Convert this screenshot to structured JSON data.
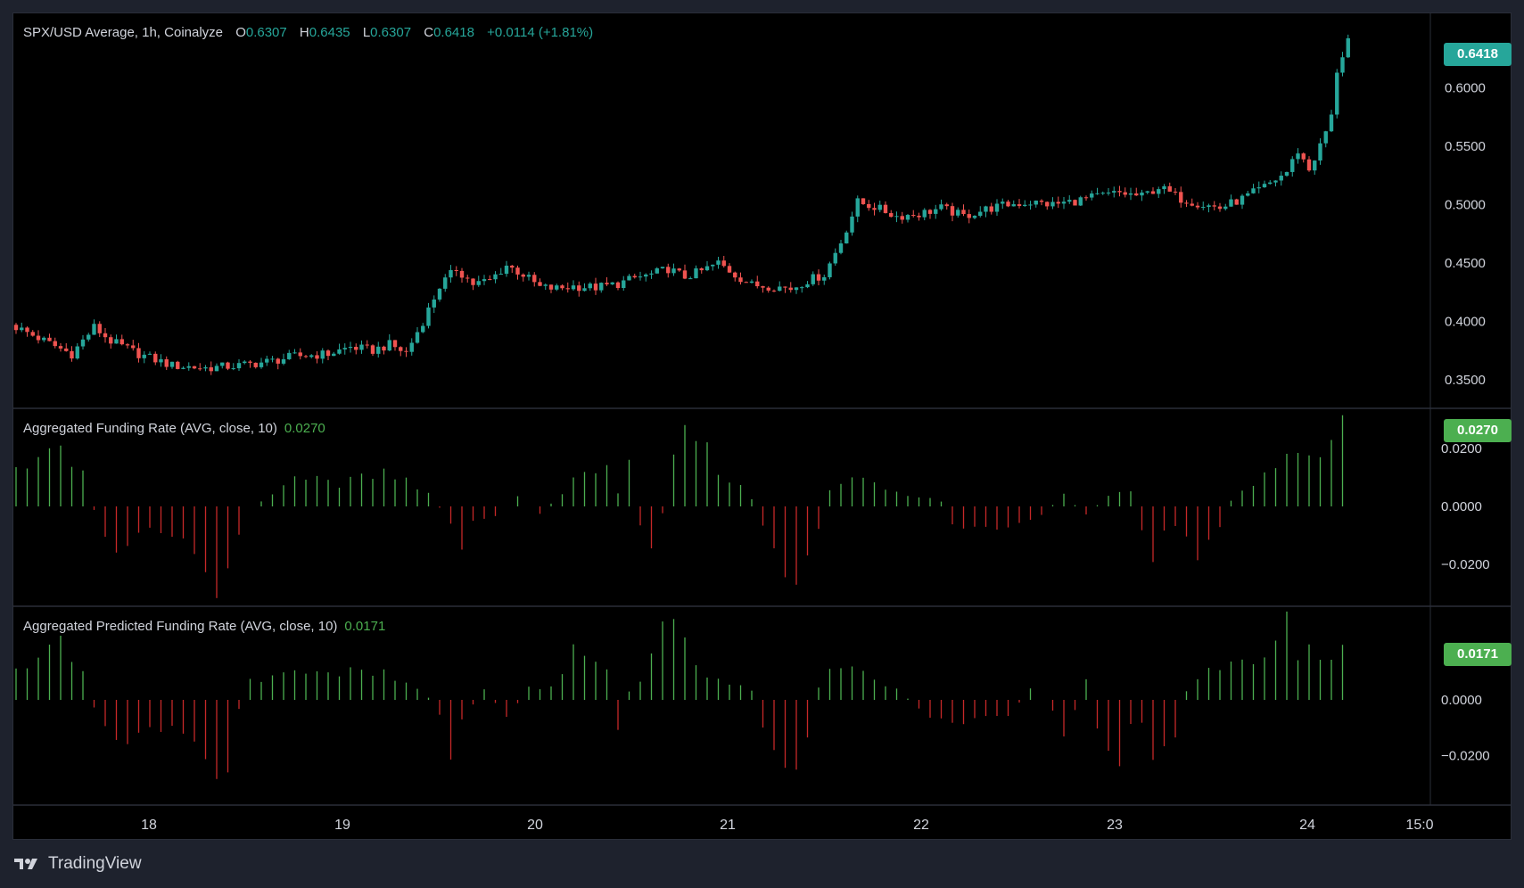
{
  "main": {
    "symbol": "SPX/USD Average, 1h, Coinalyze",
    "ohlc": [
      {
        "label": "O",
        "value": "0.6307"
      },
      {
        "label": "H",
        "value": "0.6435"
      },
      {
        "label": "L",
        "value": "0.6307"
      },
      {
        "label": "C",
        "value": "0.6418"
      }
    ],
    "change": "+0.0114 (+1.81%)",
    "last_price_tag": "0.6418"
  },
  "funding": {
    "title": "Aggregated Funding Rate (AVG, close, 10)",
    "value": "0.0270",
    "tag": "0.0270"
  },
  "predicted": {
    "title": "Aggregated Predicted Funding Rate (AVG, close, 10)",
    "value": "0.0171",
    "tag": "0.0171"
  },
  "brand": {
    "name": "TradingView",
    "logo": "tv-logo"
  },
  "colors": {
    "up": "#26a69a",
    "down": "#ef5350",
    "hist_pos": "#4caf50",
    "hist_neg": "#c62828",
    "tag_price": "#26a69a",
    "tag_ind": "#4caf50"
  },
  "chart_data": [
    {
      "type": "candlestick",
      "x_tick_labels": [
        "18",
        "19",
        "20",
        "21",
        "22",
        "23",
        "24",
        "15:0"
      ],
      "y_tick_labels": [
        "0.6000",
        "0.5500",
        "0.5000",
        "0.4500",
        "0.4000",
        "0.3500"
      ],
      "ylim": [
        0.33,
        0.66
      ],
      "close_path": [
        [
          0,
          0.395
        ],
        [
          6,
          0.381
        ],
        [
          10,
          0.372
        ],
        [
          14,
          0.395
        ],
        [
          17,
          0.383
        ],
        [
          22,
          0.372
        ],
        [
          28,
          0.362
        ],
        [
          34,
          0.36
        ],
        [
          40,
          0.362
        ],
        [
          46,
          0.366
        ],
        [
          50,
          0.37
        ],
        [
          56,
          0.372
        ],
        [
          60,
          0.378
        ],
        [
          64,
          0.375
        ],
        [
          67,
          0.38
        ],
        [
          70,
          0.373
        ],
        [
          73,
          0.4
        ],
        [
          76,
          0.43
        ],
        [
          79,
          0.445
        ],
        [
          82,
          0.432
        ],
        [
          85,
          0.435
        ],
        [
          88,
          0.448
        ],
        [
          91,
          0.44
        ],
        [
          94,
          0.429
        ],
        [
          97,
          0.428
        ],
        [
          100,
          0.43
        ],
        [
          104,
          0.429
        ],
        [
          108,
          0.432
        ],
        [
          111,
          0.437
        ],
        [
          114,
          0.44
        ],
        [
          117,
          0.445
        ],
        [
          120,
          0.438
        ],
        [
          123,
          0.443
        ],
        [
          126,
          0.45
        ],
        [
          129,
          0.44
        ],
        [
          132,
          0.431
        ],
        [
          136,
          0.43
        ],
        [
          139,
          0.428
        ],
        [
          142,
          0.435
        ],
        [
          145,
          0.44
        ],
        [
          148,
          0.468
        ],
        [
          151,
          0.502
        ],
        [
          154,
          0.498
        ],
        [
          158,
          0.49
        ],
        [
          162,
          0.492
        ],
        [
          166,
          0.497
        ],
        [
          170,
          0.49
        ],
        [
          174,
          0.496
        ],
        [
          178,
          0.5
        ],
        [
          182,
          0.502
        ],
        [
          186,
          0.5
        ],
        [
          190,
          0.503
        ],
        [
          194,
          0.507
        ],
        [
          198,
          0.51
        ],
        [
          202,
          0.507
        ],
        [
          205,
          0.515
        ],
        [
          209,
          0.505
        ],
        [
          213,
          0.5
        ],
        [
          216,
          0.497
        ],
        [
          220,
          0.505
        ],
        [
          224,
          0.515
        ],
        [
          228,
          0.528
        ],
        [
          230,
          0.546
        ],
        [
          232,
          0.53
        ],
        [
          234,
          0.55
        ],
        [
          236,
          0.575
        ],
        [
          237,
          0.615
        ],
        [
          238,
          0.628
        ],
        [
          239,
          0.6418
        ]
      ]
    },
    {
      "type": "histogram",
      "name": "Aggregated Funding Rate (AVG, close, 10)",
      "y_tick_labels": [
        "0.0200",
        "0.0000",
        "−0.0200"
      ],
      "ylim": [
        -0.032,
        0.031
      ],
      "value_path": [
        [
          0,
          0.012
        ],
        [
          5,
          0.018
        ],
        [
          8,
          0.02
        ],
        [
          12,
          0.012
        ],
        [
          15,
          -0.008
        ],
        [
          18,
          -0.014
        ],
        [
          22,
          -0.01
        ],
        [
          26,
          -0.008
        ],
        [
          30,
          -0.01
        ],
        [
          33,
          -0.018
        ],
        [
          36,
          -0.03
        ],
        [
          38,
          -0.018
        ],
        [
          40,
          -0.012
        ],
        [
          42,
          0
        ],
        [
          46,
          0.004
        ],
        [
          50,
          0.01
        ],
        [
          54,
          0.011
        ],
        [
          58,
          0.008
        ],
        [
          62,
          0.012
        ],
        [
          66,
          0.011
        ],
        [
          70,
          0.01
        ],
        [
          74,
          0.004
        ],
        [
          78,
          -0.005
        ],
        [
          80,
          -0.017
        ],
        [
          82,
          -0.006
        ],
        [
          86,
          -0.003
        ],
        [
          90,
          0.003
        ],
        [
          94,
          -0.003
        ],
        [
          98,
          0.005
        ],
        [
          102,
          0.012
        ],
        [
          106,
          0.013
        ],
        [
          108,
          0.005
        ],
        [
          110,
          0.016
        ],
        [
          112,
          -0.006
        ],
        [
          114,
          -0.013
        ],
        [
          116,
          -0.002
        ],
        [
          118,
          0.016
        ],
        [
          120,
          0.025
        ],
        [
          124,
          0.022
        ],
        [
          126,
          0.01
        ],
        [
          128,
          0.009
        ],
        [
          130,
          0.007
        ],
        [
          132,
          0.003
        ],
        [
          134,
          -0.008
        ],
        [
          136,
          -0.016
        ],
        [
          138,
          -0.024
        ],
        [
          140,
          -0.028
        ],
        [
          142,
          -0.02
        ],
        [
          144,
          -0.007
        ],
        [
          146,
          0.005
        ],
        [
          150,
          0.01
        ],
        [
          154,
          0.008
        ],
        [
          158,
          0.005
        ],
        [
          162,
          0.003
        ],
        [
          166,
          0.002
        ],
        [
          168,
          -0.006
        ],
        [
          172,
          -0.008
        ],
        [
          176,
          -0.009
        ],
        [
          180,
          -0.006
        ],
        [
          184,
          -0.003
        ],
        [
          188,
          0.004
        ],
        [
          192,
          -0.003
        ],
        [
          196,
          0.004
        ],
        [
          200,
          0.006
        ],
        [
          202,
          -0.008
        ],
        [
          204,
          -0.016
        ],
        [
          206,
          -0.01
        ],
        [
          208,
          -0.006
        ],
        [
          210,
          -0.01
        ],
        [
          212,
          -0.02
        ],
        [
          214,
          -0.01
        ],
        [
          216,
          -0.008
        ],
        [
          218,
          0.002
        ],
        [
          220,
          0.006
        ],
        [
          224,
          0.01
        ],
        [
          228,
          0.016
        ],
        [
          230,
          0.022
        ],
        [
          232,
          0.015
        ],
        [
          234,
          0.02
        ],
        [
          236,
          0.027
        ],
        [
          238,
          0.027
        ]
      ]
    },
    {
      "type": "histogram",
      "name": "Aggregated Predicted Funding Rate (AVG, close, 10)",
      "y_tick_labels": [
        "0.0000",
        "−0.0200"
      ],
      "ylim": [
        -0.035,
        0.031
      ],
      "value_path": [
        [
          0,
          0.01
        ],
        [
          4,
          0.015
        ],
        [
          8,
          0.022
        ],
        [
          12,
          0.01
        ],
        [
          14,
          -0.003
        ],
        [
          17,
          -0.012
        ],
        [
          20,
          -0.014
        ],
        [
          24,
          -0.012
        ],
        [
          28,
          -0.008
        ],
        [
          32,
          -0.014
        ],
        [
          35,
          -0.024
        ],
        [
          37,
          -0.03
        ],
        [
          39,
          -0.014
        ],
        [
          41,
          0.006
        ],
        [
          45,
          0.008
        ],
        [
          49,
          0.01
        ],
        [
          53,
          0.011
        ],
        [
          57,
          0.01
        ],
        [
          61,
          0.012
        ],
        [
          65,
          0.01
        ],
        [
          69,
          0.007
        ],
        [
          73,
          0.004
        ],
        [
          76,
          -0.006
        ],
        [
          78,
          -0.018
        ],
        [
          80,
          -0.008
        ],
        [
          84,
          0.004
        ],
        [
          88,
          -0.006
        ],
        [
          92,
          0.004
        ],
        [
          96,
          0.005
        ],
        [
          100,
          0.017
        ],
        [
          104,
          0.015
        ],
        [
          106,
          0.01
        ],
        [
          108,
          -0.012
        ],
        [
          110,
          0.003
        ],
        [
          112,
          0.006
        ],
        [
          116,
          0.024
        ],
        [
          118,
          0.026
        ],
        [
          120,
          0.02
        ],
        [
          122,
          0.013
        ],
        [
          124,
          0.008
        ],
        [
          128,
          0.006
        ],
        [
          132,
          0.004
        ],
        [
          134,
          -0.012
        ],
        [
          136,
          -0.02
        ],
        [
          138,
          -0.024
        ],
        [
          140,
          -0.026
        ],
        [
          142,
          -0.016
        ],
        [
          144,
          0.004
        ],
        [
          146,
          0.01
        ],
        [
          150,
          0.012
        ],
        [
          154,
          0.007
        ],
        [
          158,
          0.004
        ],
        [
          162,
          -0.003
        ],
        [
          166,
          -0.008
        ],
        [
          170,
          -0.008
        ],
        [
          174,
          -0.007
        ],
        [
          178,
          -0.006
        ],
        [
          182,
          0.004
        ],
        [
          186,
          -0.004
        ],
        [
          188,
          -0.012
        ],
        [
          190,
          -0.004
        ],
        [
          192,
          0.008
        ],
        [
          194,
          -0.012
        ],
        [
          196,
          -0.02
        ],
        [
          198,
          -0.024
        ],
        [
          200,
          -0.01
        ],
        [
          202,
          -0.008
        ],
        [
          204,
          -0.018
        ],
        [
          206,
          -0.02
        ],
        [
          208,
          -0.012
        ],
        [
          210,
          0.003
        ],
        [
          212,
          0.008
        ],
        [
          216,
          0.012
        ],
        [
          220,
          0.016
        ],
        [
          224,
          0.013
        ],
        [
          226,
          0.021
        ],
        [
          228,
          0.028
        ],
        [
          230,
          0.017
        ]
      ]
    }
  ]
}
